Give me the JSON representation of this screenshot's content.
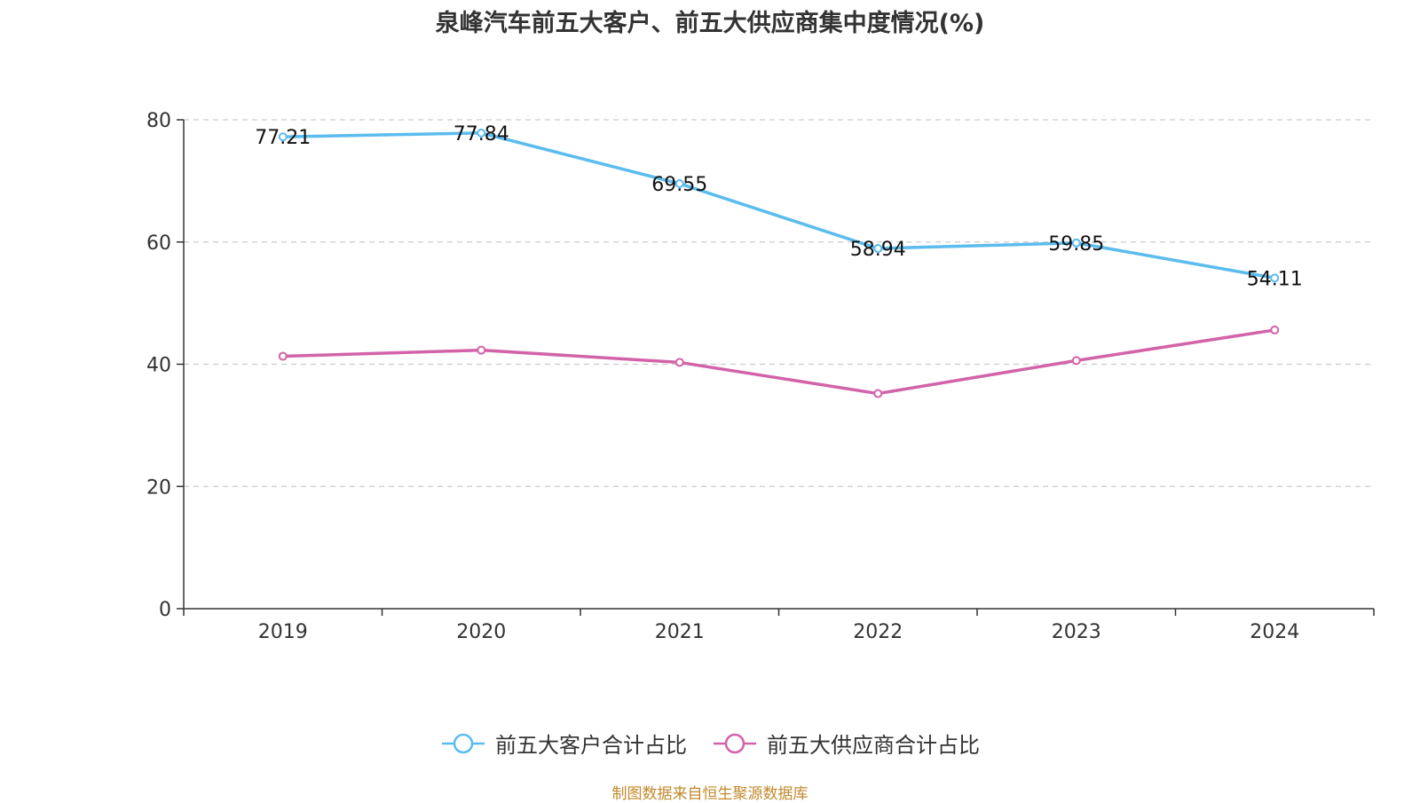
{
  "chart_data": {
    "type": "line",
    "title": "泉峰汽车前五大客户、前五大供应商集中度情况(%)",
    "x": [
      "2019",
      "2020",
      "2021",
      "2022",
      "2023",
      "2024"
    ],
    "ylim": [
      0,
      80
    ],
    "yticks": [
      0,
      20,
      40,
      60,
      80
    ],
    "grid": true,
    "legend_position": "bottom",
    "series": [
      {
        "name": "前五大客户合计占比",
        "values": [
          77.21,
          77.84,
          69.55,
          58.94,
          59.85,
          54.11
        ],
        "labels": [
          "77.21",
          "77.84",
          "69.55",
          "58.94",
          "59.85",
          "54.11"
        ],
        "color": "#5bbcee"
      },
      {
        "name": "前五大供应商合计占比",
        "values": [
          41.3,
          42.3,
          40.3,
          35.2,
          40.6,
          45.6
        ],
        "color": "#d263a8"
      }
    ]
  },
  "footer": {
    "source": "制图数据来自恒生聚源数据库"
  }
}
